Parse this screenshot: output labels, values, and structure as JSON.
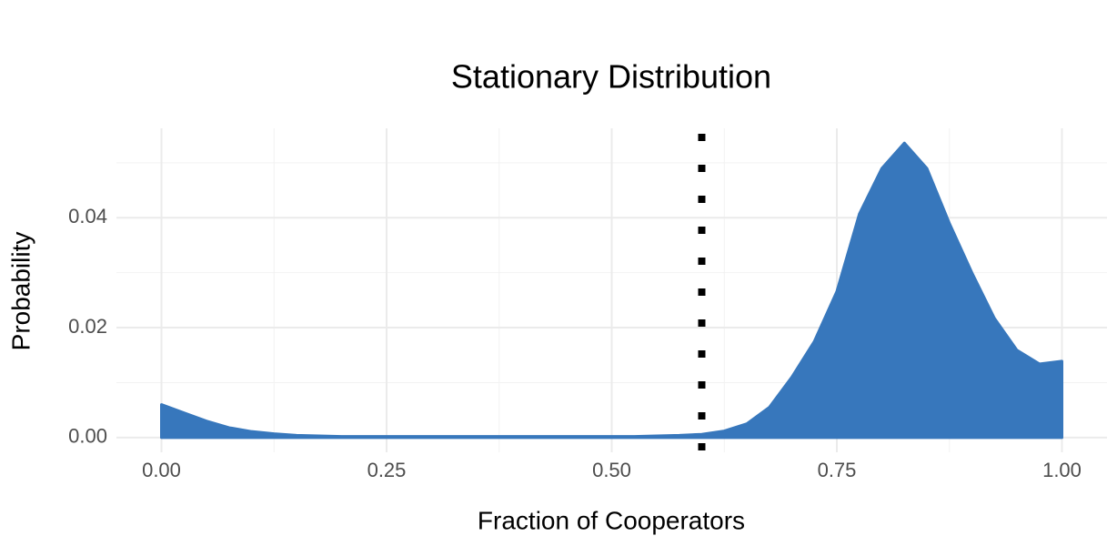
{
  "chart_data": {
    "type": "area",
    "title": "Stationary Distribution",
    "x_label": "Fraction of Cooperators",
    "y_label": "Probability",
    "color": "#3777bc",
    "x": [
      0,
      0.025,
      0.05,
      0.075,
      0.1,
      0.125,
      0.15,
      0.175,
      0.2,
      0.25,
      0.3,
      0.35,
      0.4,
      0.45,
      0.5,
      0.525,
      0.55,
      0.575,
      0.6,
      0.625,
      0.65,
      0.675,
      0.7,
      0.725,
      0.75,
      0.775,
      0.8,
      0.825,
      0.85,
      0.875,
      0.9,
      0.925,
      0.95,
      0.975,
      1.0
    ],
    "values": [
      0.006,
      0.0045,
      0.003,
      0.0018,
      0.0011,
      0.0007,
      0.0004,
      0.0003,
      0.0002,
      0.0002,
      0.0002,
      0.0002,
      0.0002,
      0.0002,
      0.0002,
      0.0002,
      0.0003,
      0.0004,
      0.0006,
      0.0012,
      0.0025,
      0.0055,
      0.011,
      0.0175,
      0.0266,
      0.0407,
      0.049,
      0.0536,
      0.049,
      0.039,
      0.03,
      0.0217,
      0.0159,
      0.0134,
      0.0139
    ],
    "vline": 0.6,
    "vline_color": "#000000",
    "xlim": [
      -0.05,
      1.05
    ],
    "ylim": [
      -0.00268,
      0.05628
    ],
    "xticks": [
      {
        "value": 0,
        "label": "0.00"
      },
      {
        "value": 0.25,
        "label": "0.25"
      },
      {
        "value": 0.5,
        "label": "0.50"
      },
      {
        "value": 0.75,
        "label": "0.75"
      },
      {
        "value": 1,
        "label": "1.00"
      }
    ],
    "yticks": [
      {
        "value": 0,
        "label": "0.00"
      },
      {
        "value": 0.02,
        "label": "0.02"
      },
      {
        "value": 0.04,
        "label": "0.04"
      }
    ],
    "x_minor_ticks": [
      0.125,
      0.375,
      0.625,
      0.875
    ],
    "y_minor_ticks": [
      0.01,
      0.03,
      0.05
    ],
    "grid": true
  }
}
